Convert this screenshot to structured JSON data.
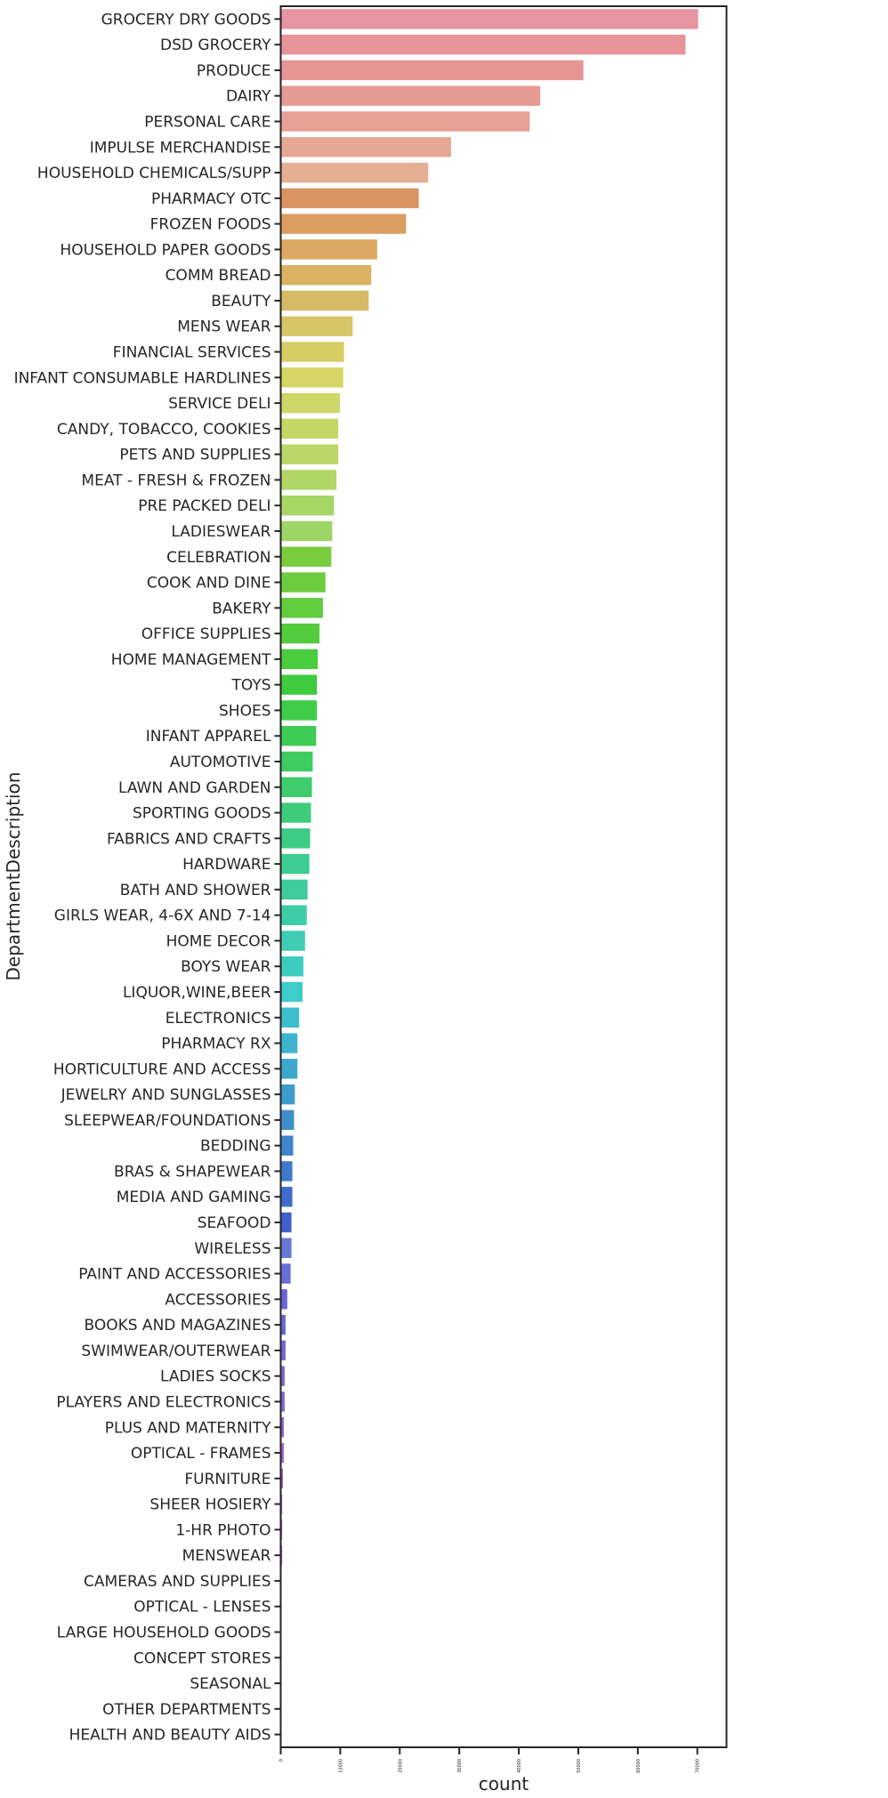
{
  "chart_data": {
    "type": "bar",
    "orientation": "horizontal",
    "xlabel": "count",
    "ylabel": "DepartmentDescription",
    "xlim": [
      0,
      74900
    ],
    "xticks": [
      0,
      10000,
      20000,
      30000,
      40000,
      50000,
      60000,
      70000
    ],
    "palette": "husl",
    "grid": false,
    "categories": [
      "GROCERY DRY GOODS",
      "DSD GROCERY",
      "PRODUCE",
      "DAIRY",
      "PERSONAL CARE",
      "IMPULSE MERCHANDISE",
      "HOUSEHOLD CHEMICALS/SUPP",
      "PHARMACY OTC",
      "FROZEN FOODS",
      "HOUSEHOLD PAPER GOODS",
      "COMM BREAD",
      "BEAUTY",
      "MENS WEAR",
      "FINANCIAL SERVICES",
      "INFANT CONSUMABLE HARDLINES",
      "SERVICE DELI",
      "CANDY, TOBACCO, COOKIES",
      "PETS AND SUPPLIES",
      "MEAT - FRESH & FROZEN",
      "PRE PACKED DELI",
      "LADIESWEAR",
      "CELEBRATION",
      "COOK AND DINE",
      "BAKERY",
      "OFFICE SUPPLIES",
      "HOME MANAGEMENT",
      "TOYS",
      "SHOES",
      "INFANT APPAREL",
      "AUTOMOTIVE",
      "LAWN AND GARDEN",
      "SPORTING GOODS",
      "FABRICS AND CRAFTS",
      "HARDWARE",
      "BATH AND SHOWER",
      "GIRLS WEAR, 4-6X  AND 7-14",
      "HOME DECOR",
      "BOYS WEAR",
      "LIQUOR,WINE,BEER",
      "ELECTRONICS",
      "PHARMACY RX",
      "HORTICULTURE AND ACCESS",
      "JEWELRY AND SUNGLASSES",
      "SLEEPWEAR/FOUNDATIONS",
      "BEDDING",
      "BRAS & SHAPEWEAR",
      "MEDIA AND GAMING",
      "SEAFOOD",
      "WIRELESS",
      "PAINT AND ACCESSORIES",
      "ACCESSORIES",
      "BOOKS AND MAGAZINES",
      "SWIMWEAR/OUTERWEAR",
      "LADIES SOCKS",
      "PLAYERS AND ELECTRONICS",
      "PLUS AND MATERNITY",
      "OPTICAL - FRAMES",
      "FURNITURE",
      "SHEER HOSIERY",
      "1-HR PHOTO",
      "MENSWEAR",
      "CAMERAS AND SUPPLIES",
      "OPTICAL - LENSES",
      "LARGE HOUSEHOLD GOODS",
      "CONCEPT STORES",
      "SEASONAL",
      "OTHER DEPARTMENTS",
      "HEALTH AND BEAUTY AIDS"
    ],
    "values": [
      70180,
      68060,
      50900,
      43650,
      41880,
      28650,
      24820,
      23240,
      21100,
      16250,
      15250,
      14830,
      12120,
      10690,
      10550,
      9980,
      9700,
      9700,
      9410,
      8980,
      8700,
      8550,
      7560,
      7130,
      6560,
      6270,
      6130,
      6130,
      5990,
      5420,
      5280,
      5130,
      4990,
      4850,
      4560,
      4420,
      4130,
      3850,
      3710,
      3140,
      2850,
      2850,
      2420,
      2280,
      2140,
      2000,
      2000,
      1850,
      1850,
      1710,
      1140,
      860,
      860,
      710,
      710,
      570,
      570,
      430,
      290,
      290,
      290,
      40,
      30,
      20,
      10,
      5,
      2,
      1
    ]
  }
}
